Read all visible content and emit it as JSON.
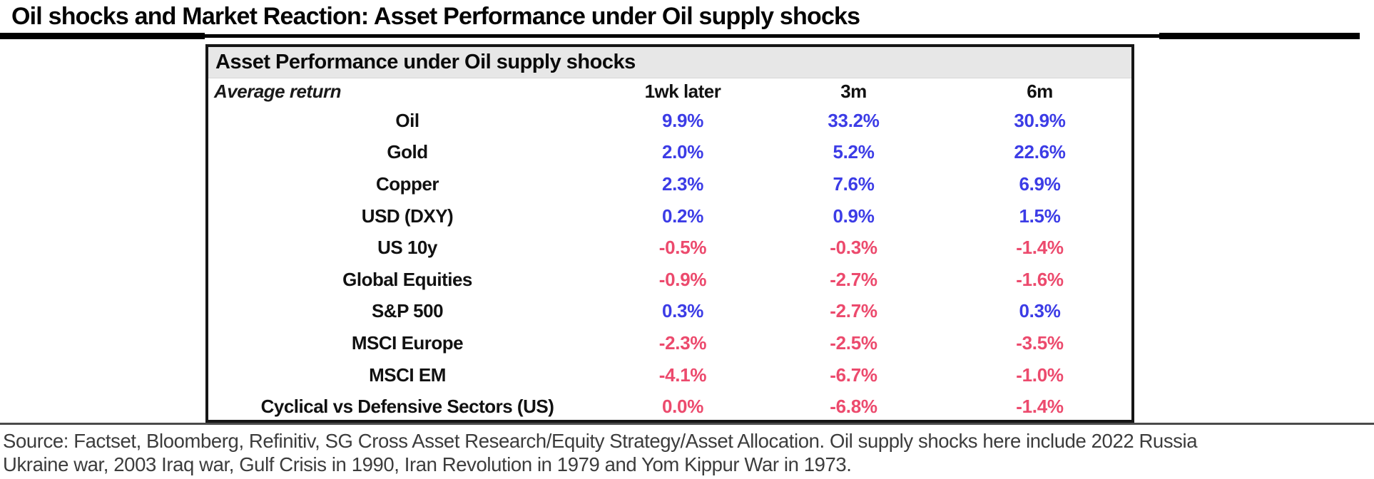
{
  "header": {
    "title": "Oil shocks and Market Reaction: Asset Performance under Oil supply shocks"
  },
  "chart_data": {
    "type": "table",
    "title": "Asset Performance under Oil supply shocks",
    "corner_label": "Average return",
    "columns": [
      "1wk later",
      "3m",
      "6m"
    ],
    "rows": [
      {
        "asset": "Oil",
        "values": [
          "9.9%",
          "33.2%",
          "30.9%"
        ],
        "tones": [
          "pos",
          "pos",
          "pos"
        ]
      },
      {
        "asset": "Gold",
        "values": [
          "2.0%",
          "5.2%",
          "22.6%"
        ],
        "tones": [
          "pos",
          "pos",
          "pos"
        ]
      },
      {
        "asset": "Copper",
        "values": [
          "2.3%",
          "7.6%",
          "6.9%"
        ],
        "tones": [
          "pos",
          "pos",
          "pos"
        ]
      },
      {
        "asset": "USD (DXY)",
        "values": [
          "0.2%",
          "0.9%",
          "1.5%"
        ],
        "tones": [
          "pos",
          "pos",
          "pos"
        ]
      },
      {
        "asset": "US 10y",
        "values": [
          "-0.5%",
          "-0.3%",
          "-1.4%"
        ],
        "tones": [
          "neg",
          "neg",
          "neg"
        ]
      },
      {
        "asset": "Global Equities",
        "values": [
          "-0.9%",
          "-2.7%",
          "-1.6%"
        ],
        "tones": [
          "neg",
          "neg",
          "neg"
        ]
      },
      {
        "asset": "S&P 500",
        "values": [
          "0.3%",
          "-2.7%",
          "0.3%"
        ],
        "tones": [
          "pos",
          "neg",
          "pos"
        ]
      },
      {
        "asset": "MSCI Europe",
        "values": [
          "-2.3%",
          "-2.5%",
          "-3.5%"
        ],
        "tones": [
          "neg",
          "neg",
          "neg"
        ]
      },
      {
        "asset": "MSCI EM",
        "values": [
          "-4.1%",
          "-6.7%",
          "-1.0%"
        ],
        "tones": [
          "neg",
          "neg",
          "neg"
        ]
      },
      {
        "asset": "Cyclical vs Defensive Sectors (US)",
        "values": [
          "0.0%",
          "-6.8%",
          "-1.4%"
        ],
        "tones": [
          "neg",
          "neg",
          "neg"
        ]
      }
    ],
    "colors": {
      "positive": "#3c3ce6",
      "negative": "#ec4a6d"
    },
    "layout": {
      "legend": "none",
      "grid": "off",
      "value_color_rule": "positive returns blue, zero or negative returns pink-red"
    }
  },
  "footer": {
    "source_line1": "Source: Factset, Bloomberg, Refinitiv, SG Cross Asset Research/Equity Strategy/Asset Allocation. Oil supply shocks here include 2022 Russia",
    "source_line2": "Ukraine war, 2003 Iraq war, Gulf Crisis in 1990, Iran Revolution in 1979 and Yom Kippur War in 1973."
  }
}
